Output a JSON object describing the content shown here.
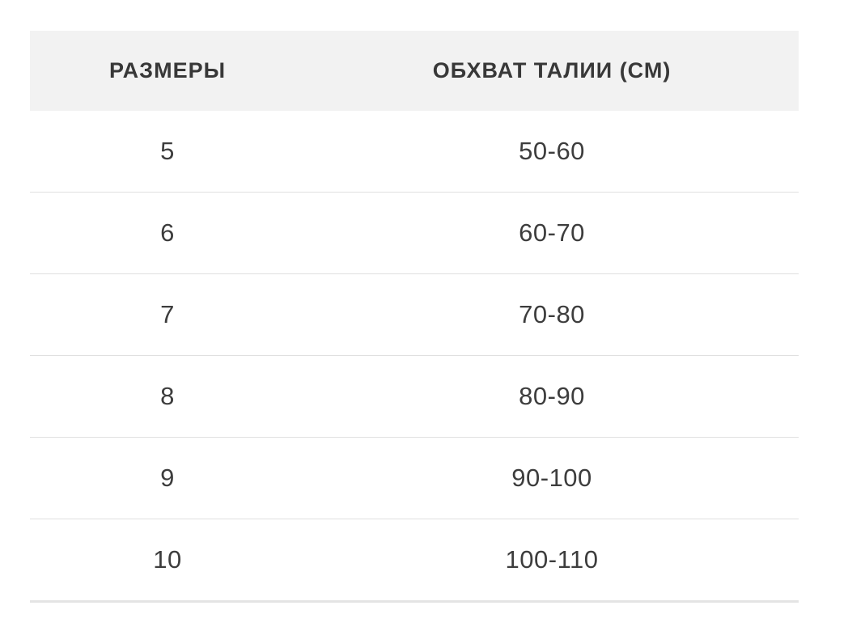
{
  "chart_data": {
    "type": "table",
    "title": "",
    "columns": [
      "РАЗМЕРЫ",
      "ОБХВАТ ТАЛИИ (СМ)"
    ],
    "rows": [
      [
        "5",
        "50-60"
      ],
      [
        "6",
        "60-70"
      ],
      [
        "7",
        "70-80"
      ],
      [
        "8",
        "80-90"
      ],
      [
        "9",
        "90-100"
      ],
      [
        "10",
        "100-110"
      ]
    ]
  },
  "colors": {
    "header_bg": "#f2f2f2",
    "divider": "#e0e0e0",
    "bottom_border": "#e4e4e4",
    "header_text": "#383838",
    "cell_text": "#3d3d3d",
    "page_bg": "#ffffff"
  }
}
